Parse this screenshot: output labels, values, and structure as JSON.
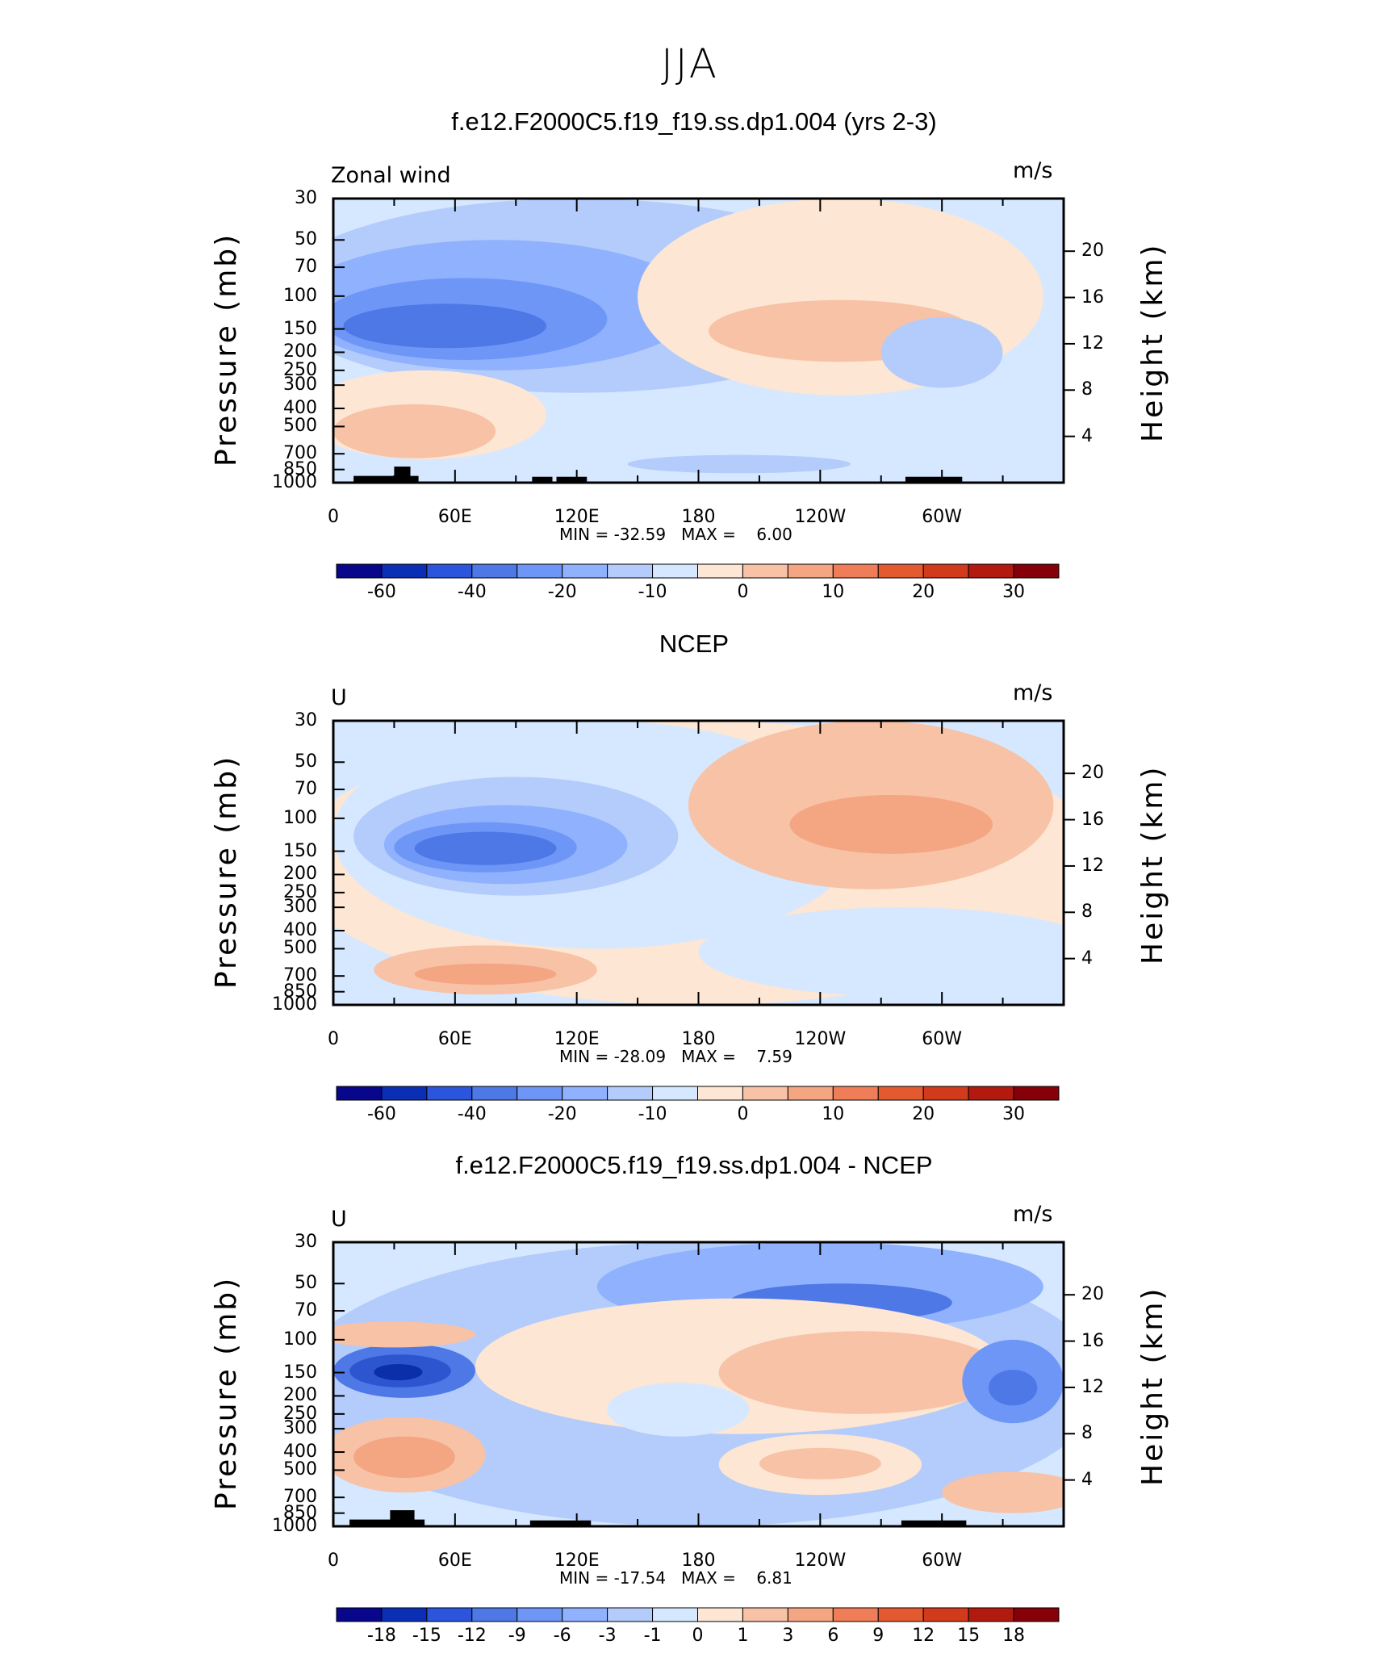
{
  "figure": {
    "title": "JJA"
  },
  "chart_data": [
    {
      "type": "heatmap",
      "title": "f.e12.F2000C5.f19_f19.ss.dp1.004 (yrs 2-3)",
      "left_label": "Zonal wind",
      "units": "m/s",
      "xlabel": "",
      "ylabel": "Pressure (mb)",
      "ylabel_right": "Height (km)",
      "x_ticks": [
        "0",
        "60E",
        "120E",
        "180",
        "120W",
        "60W"
      ],
      "y_ticks": [
        "30",
        "50",
        "70",
        "100",
        "150",
        "200",
        "250",
        "300",
        "400",
        "500",
        "700",
        "850",
        "1000"
      ],
      "y_ticks_right": [
        "20",
        "16",
        "12",
        "8",
        "4"
      ],
      "xlim": [
        0,
        360
      ],
      "ylim": [
        1000,
        30
      ],
      "stats_text": "MIN = -32.59   MAX =    6.00",
      "min": -32.59,
      "max": 6.0,
      "colorbar": {
        "levels": [
          -70,
          -60,
          -50,
          -40,
          -30,
          -20,
          -15,
          -10,
          -5,
          0,
          5,
          10,
          15,
          20,
          25,
          30,
          35
        ],
        "labels": [
          "-60",
          "-40",
          "-20",
          "-10",
          "0",
          "10",
          "20",
          "30"
        ]
      },
      "regions": [
        {
          "lon": 185,
          "p": 500,
          "rx": 180,
          "rp": 900,
          "color": "#d6e8ff"
        },
        {
          "lon": 320,
          "p": 40,
          "rx": 80,
          "rp": 10,
          "color": "#d6e8ff"
        },
        {
          "lon": 120,
          "p": 170,
          "rx": 150,
          "rp": 160,
          "color": "#b3ccfb"
        },
        {
          "lon": 80,
          "p": 150,
          "rx": 100,
          "rp": 100,
          "color": "#8fb1fe"
        },
        {
          "lon": 65,
          "p": 150,
          "rx": 70,
          "rp": 70,
          "color": "#6e96f6"
        },
        {
          "lon": 55,
          "p": 150,
          "rx": 50,
          "rp": 40,
          "color": "#4d78e6"
        },
        {
          "lon": 250,
          "p": 180,
          "rx": 100,
          "rp": 160,
          "color": "#fde6d3"
        },
        {
          "lon": 250,
          "p": 165,
          "rx": 65,
          "rp": 60,
          "color": "#f7c2a6"
        },
        {
          "lon": 45,
          "p": 500,
          "rx": 60,
          "rp": 250,
          "color": "#fde6d3"
        },
        {
          "lon": 40,
          "p": 560,
          "rx": 40,
          "rp": 180,
          "color": "#f7c2a6"
        },
        {
          "lon": 200,
          "p": 800,
          "rx": 55,
          "rp": 90,
          "color": "#b3ccfb"
        },
        {
          "lon": 300,
          "p": 220,
          "rx": 30,
          "rp": 90,
          "color": "#b3ccfb"
        }
      ],
      "topography": [
        {
          "lon0": 10,
          "lon1": 42,
          "p_top": 920
        },
        {
          "lon0": 30,
          "lon1": 38,
          "p_top": 820
        },
        {
          "lon0": 98,
          "lon1": 108,
          "p_top": 930
        },
        {
          "lon0": 110,
          "lon1": 125,
          "p_top": 930
        },
        {
          "lon0": 282,
          "lon1": 310,
          "p_top": 930
        }
      ]
    },
    {
      "type": "heatmap",
      "title": "NCEP",
      "left_label": "U",
      "units": "m/s",
      "xlabel": "",
      "ylabel": "Pressure (mb)",
      "ylabel_right": "Height (km)",
      "x_ticks": [
        "0",
        "60E",
        "120E",
        "180",
        "120W",
        "60W"
      ],
      "y_ticks": [
        "30",
        "50",
        "70",
        "100",
        "150",
        "200",
        "250",
        "300",
        "400",
        "500",
        "700",
        "850",
        "1000"
      ],
      "y_ticks_right": [
        "20",
        "16",
        "12",
        "8",
        "4"
      ],
      "xlim": [
        0,
        360
      ],
      "ylim": [
        1000,
        30
      ],
      "stats_text": "MIN = -28.09   MAX =    7.59",
      "min": -28.09,
      "max": 7.59,
      "colorbar": {
        "levels": [
          -70,
          -60,
          -50,
          -40,
          -30,
          -20,
          -15,
          -10,
          -5,
          0,
          5,
          10,
          15,
          20,
          25,
          30,
          35
        ],
        "labels": [
          "-60",
          "-40",
          "-20",
          "-10",
          "0",
          "10",
          "20",
          "30"
        ]
      },
      "regions": [
        {
          "lon": 180,
          "p": 300,
          "rx": 200,
          "rp": 700,
          "color": "#fde6d3"
        },
        {
          "lon": 130,
          "p": 250,
          "rx": 130,
          "rp": 250,
          "color": "#d6e8ff"
        },
        {
          "lon": 280,
          "p": 600,
          "rx": 100,
          "rp": 300,
          "color": "#d6e8ff"
        },
        {
          "lon": 90,
          "p": 160,
          "rx": 80,
          "rp": 100,
          "color": "#b3ccfb"
        },
        {
          "lon": 85,
          "p": 155,
          "rx": 60,
          "rp": 70,
          "color": "#8fb1fe"
        },
        {
          "lon": 75,
          "p": 150,
          "rx": 45,
          "rp": 45,
          "color": "#6e96f6"
        },
        {
          "lon": 75,
          "p": 148,
          "rx": 35,
          "rp": 30,
          "color": "#4d78e6"
        },
        {
          "lon": 265,
          "p": 130,
          "rx": 90,
          "rp": 110,
          "color": "#f7c2a6"
        },
        {
          "lon": 275,
          "p": 115,
          "rx": 50,
          "rp": 40,
          "color": "#f4a582"
        },
        {
          "lon": 75,
          "p": 680,
          "rx": 55,
          "rp": 200,
          "color": "#f7c2a6"
        },
        {
          "lon": 75,
          "p": 690,
          "rx": 35,
          "rp": 90,
          "color": "#f4a582"
        },
        {
          "lon": 10,
          "p": 30,
          "rx": 180,
          "rp": 12,
          "color": "#d6e8ff"
        }
      ],
      "topography": []
    },
    {
      "type": "heatmap",
      "title": "f.e12.F2000C5.f19_f19.ss.dp1.004 - NCEP",
      "left_label": "U",
      "units": "m/s",
      "xlabel": "",
      "ylabel": "Pressure (mb)",
      "ylabel_right": "Height (km)",
      "x_ticks": [
        "0",
        "60E",
        "120E",
        "180",
        "120W",
        "60W"
      ],
      "y_ticks": [
        "30",
        "50",
        "70",
        "100",
        "150",
        "200",
        "250",
        "300",
        "400",
        "500",
        "700",
        "850",
        "1000"
      ],
      "y_ticks_right": [
        "20",
        "16",
        "12",
        "8",
        "4"
      ],
      "xlim": [
        0,
        360
      ],
      "ylim": [
        1000,
        30
      ],
      "stats_text": "MIN = -17.54   MAX =    6.81",
      "min": -17.54,
      "max": 6.81,
      "colorbar": {
        "levels": [
          -21,
          -18,
          -15,
          -12,
          -9,
          -6,
          -3,
          -1,
          0,
          1,
          3,
          6,
          9,
          12,
          15,
          18,
          21
        ],
        "labels": [
          "-18",
          "-15",
          "-12",
          "-9",
          "-6",
          "-3",
          "-1",
          "0",
          "1",
          "3",
          "6",
          "9",
          "12",
          "15",
          "18"
        ]
      },
      "regions": [
        {
          "lon": 180,
          "p": 300,
          "rx": 200,
          "rp": 700,
          "color": "#b3ccfb"
        },
        {
          "lon": 240,
          "p": 60,
          "rx": 110,
          "rp": 30,
          "color": "#8fb1fe"
        },
        {
          "lon": 250,
          "p": 65,
          "rx": 55,
          "rp": 15,
          "color": "#4d78e6"
        },
        {
          "lon": 200,
          "p": 190,
          "rx": 130,
          "rp": 130,
          "color": "#fde6d3"
        },
        {
          "lon": 260,
          "p": 170,
          "rx": 70,
          "rp": 80,
          "color": "#f7c2a6"
        },
        {
          "lon": 170,
          "p": 250,
          "rx": 35,
          "rp": 80,
          "color": "#d6e8ff"
        },
        {
          "lon": 35,
          "p": 155,
          "rx": 35,
          "rp": 50,
          "color": "#4d78e6"
        },
        {
          "lon": 33,
          "p": 150,
          "rx": 25,
          "rp": 30,
          "color": "#2e55d0"
        },
        {
          "lon": 32,
          "p": 150,
          "rx": 12,
          "rp": 15,
          "color": "#0b2fa8"
        },
        {
          "lon": 35,
          "p": 460,
          "rx": 40,
          "rp": 200,
          "color": "#f7c2a6"
        },
        {
          "lon": 35,
          "p": 440,
          "rx": 25,
          "rp": 110,
          "color": "#f4a582"
        },
        {
          "lon": 30,
          "p": 95,
          "rx": 40,
          "rp": 15,
          "color": "#f7c2a6"
        },
        {
          "lon": 335,
          "p": 190,
          "rx": 25,
          "rp": 90,
          "color": "#6e96f6"
        },
        {
          "lon": 335,
          "p": 185,
          "rx": 12,
          "rp": 40,
          "color": "#4d78e6"
        },
        {
          "lon": 335,
          "p": 680,
          "rx": 35,
          "rp": 170,
          "color": "#f7c2a6"
        },
        {
          "lon": 240,
          "p": 500,
          "rx": 50,
          "rp": 180,
          "color": "#fde6d3"
        },
        {
          "lon": 240,
          "p": 470,
          "rx": 30,
          "rp": 90,
          "color": "#f7c2a6"
        }
      ],
      "topography": [
        {
          "lon0": 8,
          "lon1": 45,
          "p_top": 920
        },
        {
          "lon0": 28,
          "lon1": 40,
          "p_top": 820
        },
        {
          "lon0": 97,
          "lon1": 127,
          "p_top": 930
        },
        {
          "lon0": 280,
          "lon1": 312,
          "p_top": 930
        }
      ]
    }
  ],
  "colorbar_colors": [
    "#08068a",
    "#0a2fb4",
    "#2b55dc",
    "#4d78e6",
    "#6e96f6",
    "#8fb1fe",
    "#b3ccfb",
    "#d6e8ff",
    "#fde6d3",
    "#f7c2a6",
    "#f4a582",
    "#ef7d57",
    "#e45a30",
    "#d13a1b",
    "#b21a10",
    "#850008"
  ]
}
